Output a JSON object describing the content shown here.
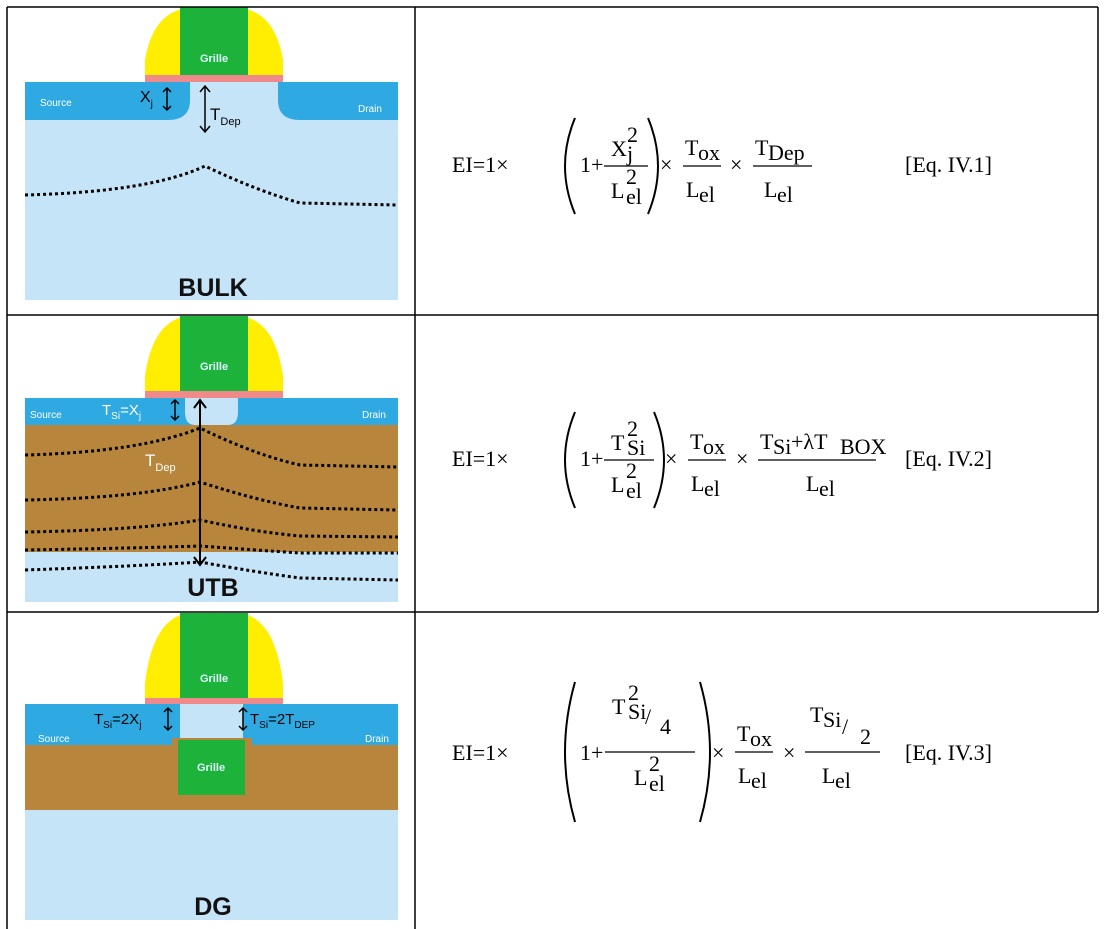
{
  "rows": [
    {
      "diagram": {
        "gate": "Grille",
        "source": "Source",
        "drain": "Drain",
        "dim1": [
          "X",
          "j"
        ],
        "dim2": [
          "T",
          "Dep"
        ],
        "label": "BULK"
      },
      "equation": {
        "lead": "EI=1×",
        "one_plus": "1+",
        "n1": "X",
        "n1_sup": "2",
        "n1_sub": "j",
        "d1": "L",
        "d1_sup": "2",
        "d1_sub": "el",
        "times1": "×",
        "n2": "T",
        "n2_sub": "ox",
        "d2": "L",
        "d2_sub": "el",
        "times2": "×",
        "n3": "T",
        "n3_sub": "Dep",
        "d3": "L",
        "d3_sub": "el",
        "label": "[Eq. IV.1]"
      }
    },
    {
      "diagram": {
        "gate": "Grille",
        "source": "Source",
        "drain": "Drain",
        "dim1": [
          "T",
          "Si",
          "=X",
          "j"
        ],
        "dim2": [
          "T",
          "Dep"
        ],
        "label": "UTB"
      },
      "equation": {
        "lead": "EI=1×",
        "one_plus": "1+",
        "n1": "T",
        "n1_sup": "2",
        "n1_sub": "Si",
        "d1": "L",
        "d1_sup": "2",
        "d1_sub": "el",
        "times1": "×",
        "n2": "T",
        "n2_sub": "ox",
        "d2": "L",
        "d2_sub": "el",
        "times2": "×",
        "n3": "T",
        "n3_sub": "Si",
        "n3_more": "+λT",
        "n3_more_sub": "BOX",
        "d3": "L",
        "d3_sub": "el",
        "label": "[Eq. IV.2]"
      }
    },
    {
      "diagram": {
        "gate": "Grille",
        "source": "Source",
        "drain": "Drain",
        "dim1": [
          "T",
          "Si",
          "=2X",
          "j"
        ],
        "dim2": [
          "T",
          "Si",
          "=2T",
          "DEP"
        ],
        "bottom_gate": "Grille",
        "label": "DG"
      },
      "equation": {
        "lead": "EI=1×",
        "one_plus": "1+",
        "n1": "T",
        "n1_sup": "2",
        "n1_sub": "Si",
        "n1_slash": "/",
        "n1_div": "4",
        "d1": "L",
        "d1_sup": "2",
        "d1_sub": "el",
        "times1": "×",
        "n2": "T",
        "n2_sub": "ox",
        "d2": "L",
        "d2_sub": "el",
        "times2": "×",
        "n3": "T",
        "n3_sub": "Si",
        "n3_slash": "/",
        "n3_div": "2",
        "d3": "L",
        "d3_sub": "el",
        "label": "[Eq. IV.3]"
      }
    }
  ]
}
